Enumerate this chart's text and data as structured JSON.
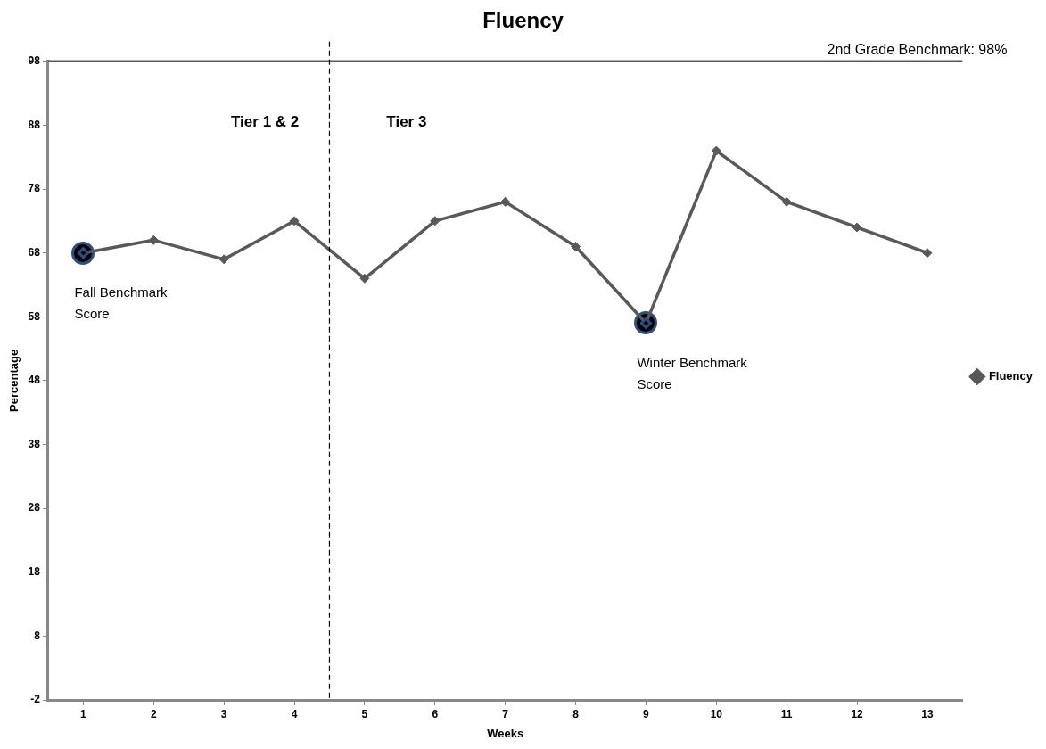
{
  "chart_data": {
    "type": "line",
    "title": "Fluency",
    "xlabel": "Weeks",
    "ylabel": "Percentage",
    "x": [
      1,
      2,
      3,
      4,
      5,
      6,
      7,
      8,
      9,
      10,
      11,
      12,
      13
    ],
    "series": [
      {
        "name": "Fluency",
        "color": "#595959",
        "values": [
          68,
          70,
          67,
          73,
          64,
          73,
          76,
          69,
          57,
          84,
          76,
          72,
          68
        ]
      }
    ],
    "xlim": [
      0.5,
      13.5
    ],
    "xticks": [
      1,
      2,
      3,
      4,
      5,
      6,
      7,
      8,
      9,
      10,
      11,
      12,
      13
    ],
    "ylim": [
      -2,
      98
    ],
    "yticks": [
      -2,
      8,
      18,
      28,
      38,
      48,
      58,
      68,
      78,
      88,
      98
    ],
    "ref_lines": [
      {
        "axis": "y",
        "value": 98,
        "label": "2nd Grade Benchmark: 98%",
        "color": "#595959"
      },
      {
        "axis": "x",
        "value": 4.5,
        "color": "#000000",
        "line_style": "dashed"
      }
    ],
    "annotations": [
      {
        "text": "Fall Benchmark Score",
        "x": 1,
        "y": 68
      },
      {
        "text": "Winter Benchmark Score",
        "x": 9,
        "y": 57
      },
      "Tier 1 & 2",
      "Tier 3"
    ],
    "marker": "diamond",
    "line_style": "solid",
    "grid": false,
    "legend": "right"
  }
}
